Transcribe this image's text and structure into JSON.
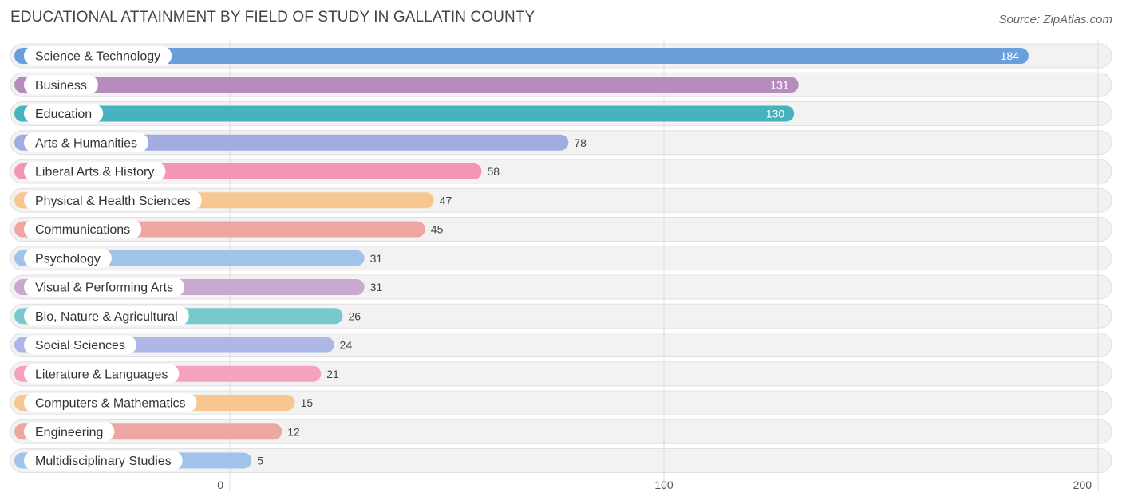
{
  "header": {
    "title": "EDUCATIONAL ATTAINMENT BY FIELD OF STUDY IN GALLATIN COUNTY",
    "source": "Source: ZipAtlas.com"
  },
  "chart_data": {
    "type": "bar",
    "orientation": "horizontal",
    "title": "EDUCATIONAL ATTAINMENT BY FIELD OF STUDY IN GALLATIN COUNTY",
    "xlabel": "",
    "ylabel": "",
    "xlim": [
      0,
      200
    ],
    "xticks": [
      0,
      100,
      200
    ],
    "grid": true,
    "categories": [
      "Science & Technology",
      "Business",
      "Education",
      "Arts & Humanities",
      "Liberal Arts & History",
      "Physical & Health Sciences",
      "Communications",
      "Psychology",
      "Visual & Performing Arts",
      "Bio, Nature & Agricultural",
      "Social Sciences",
      "Literature & Languages",
      "Computers & Mathematics",
      "Engineering",
      "Multidisciplinary Studies"
    ],
    "values": [
      184,
      131,
      130,
      78,
      58,
      47,
      45,
      31,
      31,
      26,
      24,
      21,
      15,
      12,
      5
    ],
    "colors": [
      "#6a9fdc",
      "#b68cbe",
      "#47b3bf",
      "#a2ace3",
      "#f495b3",
      "#f8c791",
      "#eea6a1",
      "#a2c3e9",
      "#c9a9cf",
      "#78c8ce",
      "#afb6e8",
      "#f5a3bd",
      "#f8c791",
      "#eea6a1",
      "#a2c3e9"
    ]
  }
}
